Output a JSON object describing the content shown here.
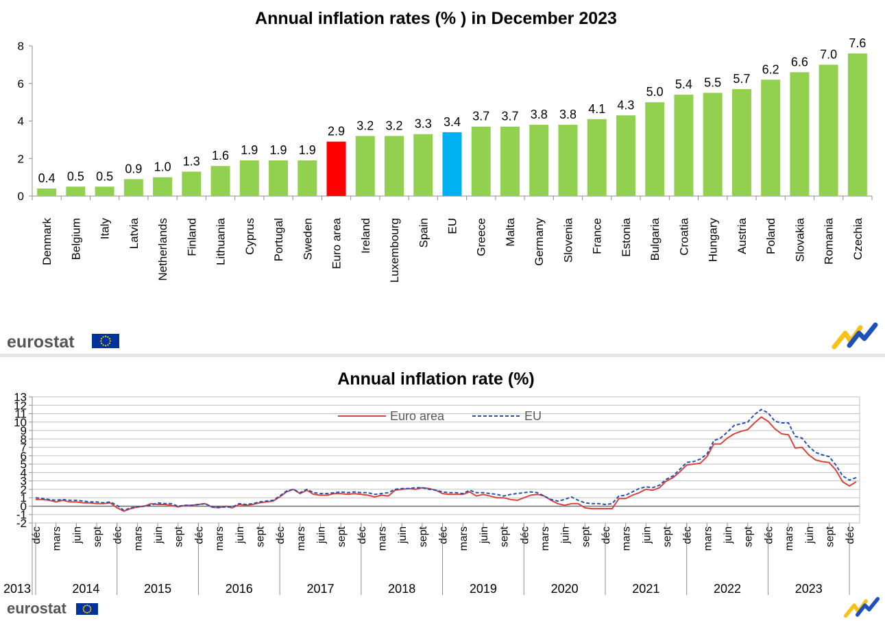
{
  "brand": {
    "logo_text": "eurostat",
    "colors": {
      "eu_flag": "#003399",
      "flag_stars": "#ffcc00",
      "logo_text": "#555555",
      "mark_yellow": "#f6c21a",
      "mark_blue": "#1f4fb8"
    }
  },
  "chart_data": [
    {
      "type": "bar",
      "title": "Annual inflation rates (% ) in December 2023",
      "categories": [
        "Denmark",
        "Belgium",
        "Italy",
        "Latvia",
        "Netherlands",
        "Finland",
        "Lithuania",
        "Cyprus",
        "Portugal",
        "Sweden",
        "Euro area",
        "Ireland",
        "Luxembourg",
        "Spain",
        "EU",
        "Greece",
        "Malta",
        "Germany",
        "Slovenia",
        "France",
        "Estonia",
        "Bulgaria",
        "Croatia",
        "Hungary",
        "Austria",
        "Poland",
        "Slovakia",
        "Romania",
        "Czechia"
      ],
      "values": [
        0.4,
        0.5,
        0.5,
        0.9,
        1.0,
        1.3,
        1.6,
        1.9,
        1.9,
        1.9,
        2.9,
        3.2,
        3.2,
        3.3,
        3.4,
        3.7,
        3.7,
        3.8,
        3.8,
        4.1,
        4.3,
        5.0,
        5.4,
        5.5,
        5.7,
        6.2,
        6.6,
        7.0,
        7.6
      ],
      "labels": [
        "0.4",
        "0.5",
        "0.5",
        "0.9",
        "1.0",
        "1.3",
        "1.6",
        "1.9",
        "1.9",
        "1.9",
        "2.9",
        "3.2",
        "3.2",
        "3.3",
        "3.4",
        "3.7",
        "3.7",
        "3.8",
        "3.8",
        "4.1",
        "4.3",
        "5.0",
        "5.4",
        "5.5",
        "5.7",
        "6.2",
        "6.6",
        "7.0",
        "7.6"
      ],
      "ylim": [
        0,
        8
      ],
      "yticks": [
        0,
        2,
        4,
        6,
        8
      ],
      "ytick_labels": [
        "0",
        "2",
        "4",
        "6",
        "8"
      ],
      "grid": false,
      "colors": {
        "default": "#92d050",
        "highlight": {
          "Euro area": "#ff0000",
          "EU": "#00b0f0"
        }
      }
    },
    {
      "type": "line",
      "title": "Annual inflation rate (%)",
      "ylim": [
        -2,
        13
      ],
      "yticks": [
        -2,
        -1,
        0,
        1,
        2,
        3,
        4,
        5,
        6,
        7,
        8,
        9,
        10,
        11,
        12,
        13
      ],
      "ytick_labels": [
        "-2",
        "-1",
        "0",
        "1",
        "2",
        "3",
        "4",
        "5",
        "6",
        "7",
        "8",
        "9",
        "10",
        "11",
        "12",
        "13"
      ],
      "grid": true,
      "legend_position": "top-center",
      "x_start": "2013-12",
      "x_end": "2023-12",
      "month_ticks": [
        "déc",
        "mars",
        "juin",
        "sept",
        "déc",
        "mars",
        "juin",
        "sept",
        "déc",
        "mars",
        "juin",
        "sept",
        "déc",
        "mars",
        "juin",
        "sept",
        "déc",
        "mars",
        "juin",
        "sept",
        "déc",
        "mars",
        "juin",
        "sept",
        "déc",
        "mars",
        "juin",
        "sept",
        "déc",
        "mars",
        "juin",
        "sept",
        "déc",
        "mars",
        "juin",
        "sept",
        "déc",
        "mars",
        "juin",
        "sept",
        "déc"
      ],
      "years": [
        "2013",
        "2014",
        "2015",
        "2016",
        "2017",
        "2018",
        "2019",
        "2020",
        "2021",
        "2022",
        "2023"
      ],
      "series": [
        {
          "name": "Euro area",
          "color": "#d9413a",
          "style": "solid",
          "values": [
            0.8,
            0.8,
            0.7,
            0.5,
            0.7,
            0.5,
            0.5,
            0.4,
            0.4,
            0.3,
            0.3,
            0.4,
            -0.2,
            -0.6,
            -0.3,
            -0.1,
            0.0,
            0.3,
            0.2,
            0.2,
            0.1,
            -0.1,
            0.1,
            0.1,
            0.2,
            0.3,
            -0.1,
            -0.2,
            0.0,
            -0.2,
            0.2,
            0.1,
            0.2,
            0.4,
            0.5,
            0.6,
            1.1,
            1.7,
            2.0,
            1.5,
            1.9,
            1.4,
            1.3,
            1.3,
            1.5,
            1.5,
            1.4,
            1.5,
            1.4,
            1.3,
            1.1,
            1.3,
            1.2,
            1.9,
            2.0,
            2.1,
            2.0,
            2.2,
            2.1,
            1.9,
            1.5,
            1.4,
            1.4,
            1.4,
            1.7,
            1.2,
            1.4,
            1.2,
            1.0,
            1.0,
            0.8,
            0.7,
            1.0,
            1.3,
            1.4,
            1.2,
            0.7,
            0.3,
            0.1,
            0.3,
            0.3,
            -0.2,
            -0.3,
            -0.3,
            -0.3,
            -0.3,
            0.9,
            0.9,
            1.3,
            1.6,
            2.0,
            1.9,
            2.2,
            3.0,
            3.4,
            4.1,
            4.9,
            5.0,
            5.1,
            5.9,
            7.4,
            7.4,
            8.1,
            8.6,
            8.9,
            9.1,
            9.9,
            10.6,
            10.1,
            9.2,
            8.6,
            8.5,
            6.9,
            7.0,
            6.1,
            5.5,
            5.3,
            5.2,
            4.3,
            2.9,
            2.4,
            2.9
          ]
        },
        {
          "name": "EU",
          "color": "#1f4fb8",
          "style": "dashed",
          "values": [
            1.0,
            0.9,
            0.8,
            0.7,
            0.8,
            0.7,
            0.7,
            0.6,
            0.5,
            0.5,
            0.4,
            0.5,
            0.1,
            -0.5,
            -0.2,
            -0.1,
            0.0,
            0.1,
            0.4,
            0.3,
            0.3,
            0.0,
            0.1,
            0.1,
            0.2,
            0.3,
            -0.1,
            -0.1,
            -0.1,
            -0.1,
            0.3,
            0.2,
            0.3,
            0.5,
            0.6,
            0.7,
            1.2,
            1.8,
            2.0,
            1.6,
            2.0,
            1.6,
            1.5,
            1.5,
            1.6,
            1.7,
            1.6,
            1.7,
            1.6,
            1.6,
            1.4,
            1.5,
            1.6,
            2.0,
            2.1,
            2.1,
            2.2,
            2.2,
            2.0,
            1.9,
            1.7,
            1.6,
            1.6,
            1.5,
            1.9,
            1.6,
            1.6,
            1.5,
            1.4,
            1.2,
            1.4,
            1.5,
            1.6,
            1.7,
            1.6,
            1.2,
            0.8,
            0.6,
            0.8,
            1.1,
            0.7,
            0.4,
            0.3,
            0.3,
            0.2,
            0.3,
            1.2,
            1.3,
            1.7,
            2.1,
            2.3,
            2.2,
            2.5,
            3.2,
            3.6,
            4.4,
            5.2,
            5.3,
            5.6,
            6.2,
            7.8,
            8.1,
            8.8,
            9.6,
            9.8,
            10.0,
            10.9,
            11.5,
            11.1,
            10.1,
            9.9,
            9.9,
            8.3,
            8.1,
            7.1,
            6.4,
            6.1,
            5.9,
            4.9,
            3.6,
            3.1,
            3.4
          ]
        }
      ]
    }
  ]
}
